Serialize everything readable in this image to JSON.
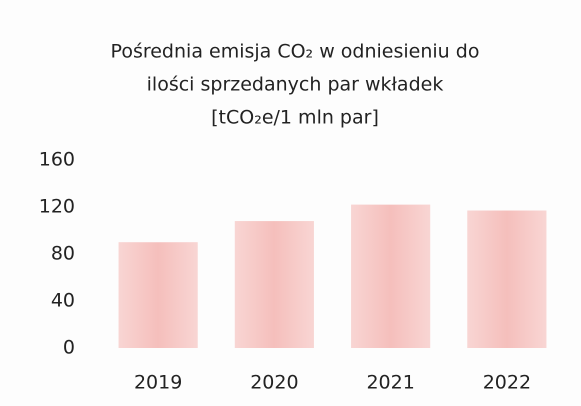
{
  "chart_data": {
    "type": "bar",
    "title": [
      "Pośrednia emisja CO₂ w odniesieniu do",
      "ilości sprzedanych par wkładek",
      "[tCO₂e/1 mln par]"
    ],
    "categories": [
      "2019",
      "2020",
      "2021",
      "2022"
    ],
    "values": [
      90,
      108,
      122,
      117
    ],
    "color": "#f1a9a5",
    "ylim": [
      0,
      160
    ],
    "yticks": [
      0,
      40,
      80,
      120,
      160
    ],
    "grid": false
  }
}
